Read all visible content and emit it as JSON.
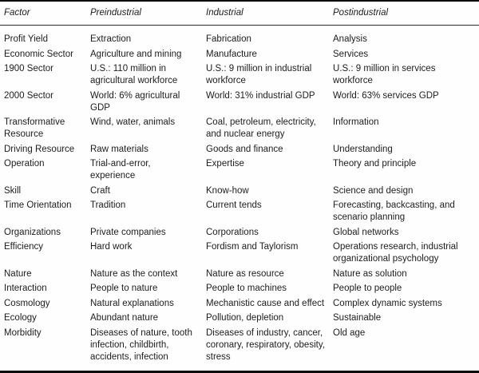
{
  "page": {
    "background_color": "#fefefe",
    "text_color": "#1d1d1d",
    "rule_color": "#0a0a0a"
  },
  "table": {
    "headers": [
      {
        "key": "factor",
        "label": "Factor"
      },
      {
        "key": "preindustrial",
        "label": "Preindustrial"
      },
      {
        "key": "industrial",
        "label": "Industrial"
      },
      {
        "key": "postindustrial",
        "label": "Postindustrial"
      }
    ],
    "rows": [
      [
        "Profit Yield",
        "Extraction",
        "Fabrication",
        "Analysis"
      ],
      [
        "Economic Sector",
        "Agriculture and mining",
        "Manufacture",
        "Services"
      ],
      [
        "1900 Sector",
        "U.S.: 110 million in agricultural workforce",
        "U.S.: 9 million in industrial workforce",
        "U.S.: 9 million in services workforce"
      ],
      [
        "2000 Sector",
        "World: 6% agricultural GDP",
        "World: 31% industrial GDP",
        "World: 63% services GDP"
      ],
      [
        "Transformative Resource",
        "Wind, water, animals",
        "Coal, petroleum, electricity, and nuclear energy",
        "Information"
      ],
      [
        "Driving Resource",
        "Raw materials",
        "Goods and finance",
        "Understanding"
      ],
      [
        "Operation",
        "Trial-and-error, experience",
        "Expertise",
        "Theory and principle"
      ],
      [
        "Skill",
        "Craft",
        "Know-how",
        "Science and design"
      ],
      [
        "Time Orientation",
        "Tradition",
        "Current tends",
        "Forecasting, backcasting, and scenario planning"
      ],
      [
        "Organizations",
        "Private companies",
        "Corporations",
        "Global networks"
      ],
      [
        "Efficiency",
        "Hard work",
        "Fordism and Taylorism",
        "Operations research, industrial organizational psychology"
      ],
      [
        "Nature",
        "Nature as the context",
        "Nature as resource",
        "Nature as solution"
      ],
      [
        "Interaction",
        "People to nature",
        "People to machines",
        "People to people"
      ],
      [
        "Cosmology",
        "Natural explanations",
        "Mechanistic cause and effect",
        "Complex dynamic systems"
      ],
      [
        "Ecology",
        "Abundant nature",
        "Pollution, depletion",
        "Sustainable"
      ],
      [
        "Morbidity",
        "Diseases of nature, tooth infection, childbirth, accidents, infection",
        "Diseases of industry, cancer, coronary, respiratory, obesity, stress",
        "Old age"
      ]
    ]
  }
}
